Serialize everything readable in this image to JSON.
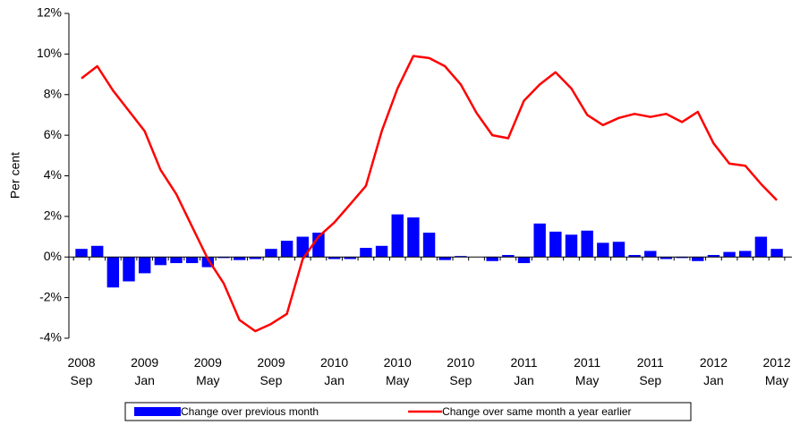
{
  "chart_data": {
    "type": "bar_line",
    "ylabel": "Per cent",
    "categories": [
      "2008\nSep",
      null,
      null,
      null,
      "2009\nJan",
      null,
      null,
      null,
      "2009\nMay",
      null,
      null,
      null,
      "2009\nSep",
      null,
      null,
      null,
      "2010\nJan",
      null,
      null,
      null,
      "2010\nMay",
      null,
      null,
      null,
      "2010\nSep",
      null,
      null,
      null,
      "2011\nJan",
      null,
      null,
      null,
      "2011\nMay",
      null,
      null,
      null,
      "2011\nSep",
      null,
      null,
      null,
      "2012\nJan",
      null,
      null,
      null,
      "2012\nMay"
    ],
    "series": [
      {
        "name": "Change over previous month",
        "type": "bar",
        "color": "#0000ff",
        "values": [
          0.4,
          0.55,
          -1.5,
          -1.2,
          -0.8,
          -0.4,
          -0.3,
          -0.3,
          -0.5,
          -0.05,
          -0.15,
          -0.1,
          0.4,
          0.8,
          1.0,
          1.2,
          -0.1,
          -0.1,
          0.45,
          0.55,
          2.1,
          1.95,
          1.2,
          -0.15,
          0.05,
          0.0,
          -0.2,
          0.1,
          -0.3,
          1.65,
          1.25,
          1.1,
          1.3,
          0.7,
          0.75,
          0.1,
          0.3,
          -0.1,
          -0.05,
          -0.2,
          0.1,
          0.25,
          0.3,
          1.0,
          0.4
        ]
      },
      {
        "name": "Change over same month a year earlier",
        "type": "line",
        "color": "#ff0000",
        "values": [
          8.8,
          9.4,
          8.2,
          7.2,
          6.2,
          4.3,
          3.1,
          1.5,
          -0.1,
          -1.3,
          -3.1,
          -3.65,
          -3.3,
          -2.8,
          -0.1,
          1.0,
          1.7,
          2.6,
          3.5,
          6.2,
          8.3,
          9.9,
          9.8,
          9.4,
          8.5,
          7.1,
          6.0,
          5.85,
          7.7,
          8.5,
          9.1,
          8.3,
          7.0,
          6.5,
          6.85,
          7.05,
          6.9,
          7.05,
          6.65,
          7.15,
          5.6,
          4.6,
          4.5,
          3.6,
          2.8
        ]
      }
    ],
    "ylim": [
      -4,
      12
    ],
    "yticks": [
      {
        "value": -4,
        "label": "-4%"
      },
      {
        "value": -2,
        "label": "-2%"
      },
      {
        "value": 0,
        "label": "0%"
      },
      {
        "value": 2,
        "label": "2%"
      },
      {
        "value": 4,
        "label": "4%"
      },
      {
        "value": 6,
        "label": "6%"
      },
      {
        "value": 8,
        "label": "8%"
      },
      {
        "value": 10,
        "label": "10%"
      },
      {
        "value": 12,
        "label": "12%"
      }
    ],
    "grid": false,
    "legend": "bottom"
  }
}
